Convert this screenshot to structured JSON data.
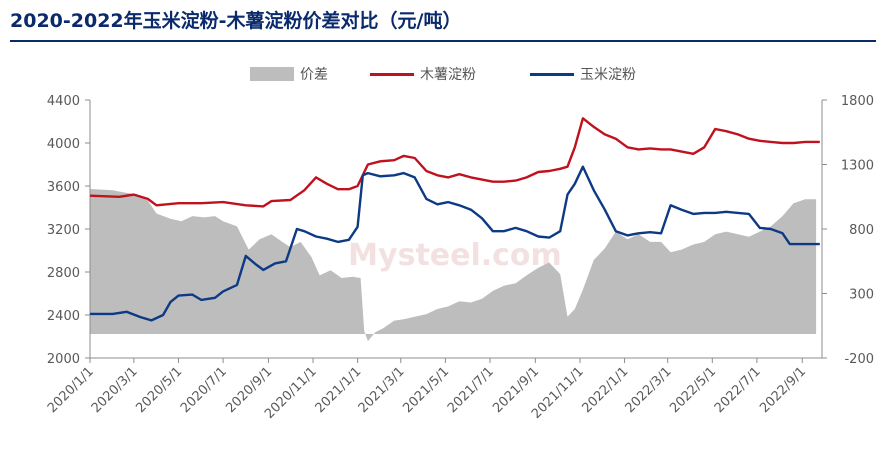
{
  "chart_data": {
    "type": "line",
    "title": "2020-2022年玉米淀粉-木薯淀粉价差对比（元/吨）",
    "watermark": "Mysteel.com",
    "legend_position": "top",
    "grid": false,
    "x_ticks": [
      "2020/1/1",
      "2020/3/1",
      "2020/5/1",
      "2020/7/1",
      "2020/9/1",
      "2020/11/1",
      "2021/1/1",
      "2021/3/1",
      "2021/5/1",
      "2021/7/1",
      "2021/9/1",
      "2021/11/1",
      "2022/1/1",
      "2022/3/1",
      "2022/5/1",
      "2022/7/1",
      "2022/9/1"
    ],
    "y_left": {
      "lim": [
        2000,
        4400
      ],
      "ticks": [
        "2000",
        "2400",
        "2800",
        "3200",
        "3600",
        "4000",
        "4400"
      ]
    },
    "y_right": {
      "lim": [
        -200,
        1800
      ],
      "ticks": [
        "-200",
        "300",
        "800",
        "1300",
        "1800"
      ]
    },
    "colors": {
      "price_spread": "#bdbdbd",
      "cassava": "#c0111f",
      "corn": "#0d3a85"
    },
    "series": [
      {
        "name": "价差",
        "axis": "right",
        "kind": "area",
        "points": [
          [
            "2020/1/1",
            1110
          ],
          [
            "2020/2/1",
            1100
          ],
          [
            "2020/2/20",
            1080
          ],
          [
            "2020/3/5",
            1070
          ],
          [
            "2020/3/20",
            1020
          ],
          [
            "2020/4/1",
            920
          ],
          [
            "2020/4/20",
            880
          ],
          [
            "2020/5/5",
            860
          ],
          [
            "2020/5/20",
            900
          ],
          [
            "2020/6/5",
            890
          ],
          [
            "2020/6/20",
            900
          ],
          [
            "2020/7/1",
            860
          ],
          [
            "2020/7/20",
            820
          ],
          [
            "2020/8/5",
            640
          ],
          [
            "2020/8/20",
            720
          ],
          [
            "2020/9/5",
            760
          ],
          [
            "2020/9/20",
            700
          ],
          [
            "2020/10/1",
            660
          ],
          [
            "2020/10/15",
            700
          ],
          [
            "2020/10/30",
            580
          ],
          [
            "2020/11/10",
            440
          ],
          [
            "2020/11/25",
            480
          ],
          [
            "2020/12/10",
            420
          ],
          [
            "2020/12/25",
            430
          ],
          [
            "2021/1/5",
            420
          ],
          [
            "2021/1/10",
            10
          ],
          [
            "2021/1/15",
            -70
          ],
          [
            "2021/1/25",
            0
          ],
          [
            "2021/2/5",
            30
          ],
          [
            "2021/2/20",
            90
          ],
          [
            "2021/3/5",
            100
          ],
          [
            "2021/3/20",
            120
          ],
          [
            "2021/4/5",
            140
          ],
          [
            "2021/4/20",
            180
          ],
          [
            "2021/5/5",
            200
          ],
          [
            "2021/5/20",
            240
          ],
          [
            "2021/6/5",
            230
          ],
          [
            "2021/6/20",
            260
          ],
          [
            "2021/7/5",
            320
          ],
          [
            "2021/7/20",
            360
          ],
          [
            "2021/8/5",
            380
          ],
          [
            "2021/8/20",
            440
          ],
          [
            "2021/9/5",
            500
          ],
          [
            "2021/9/20",
            540
          ],
          [
            "2021/10/5",
            450
          ],
          [
            "2021/10/15",
            120
          ],
          [
            "2021/10/25",
            180
          ],
          [
            "2021/11/5",
            330
          ],
          [
            "2021/11/20",
            560
          ],
          [
            "2021/12/5",
            650
          ],
          [
            "2021/12/20",
            780
          ],
          [
            "2022/1/5",
            720
          ],
          [
            "2022/1/20",
            760
          ],
          [
            "2022/2/5",
            700
          ],
          [
            "2022/2/20",
            700
          ],
          [
            "2022/3/5",
            620
          ],
          [
            "2022/3/20",
            640
          ],
          [
            "2022/4/5",
            680
          ],
          [
            "2022/4/20",
            700
          ],
          [
            "2022/5/5",
            760
          ],
          [
            "2022/5/20",
            780
          ],
          [
            "2022/6/5",
            760
          ],
          [
            "2022/6/20",
            740
          ],
          [
            "2022/7/5",
            780
          ],
          [
            "2022/7/20",
            820
          ],
          [
            "2022/8/5",
            900
          ],
          [
            "2022/8/20",
            1000
          ],
          [
            "2022/9/5",
            1030
          ],
          [
            "2022/9/20",
            1030
          ]
        ]
      },
      {
        "name": "木薯淀粉",
        "axis": "left",
        "kind": "line",
        "points": [
          [
            "2020/1/1",
            3510
          ],
          [
            "2020/2/10",
            3500
          ],
          [
            "2020/3/1",
            3520
          ],
          [
            "2020/3/20",
            3480
          ],
          [
            "2020/4/1",
            3420
          ],
          [
            "2020/5/1",
            3440
          ],
          [
            "2020/6/1",
            3440
          ],
          [
            "2020/7/1",
            3450
          ],
          [
            "2020/8/1",
            3420
          ],
          [
            "2020/8/25",
            3410
          ],
          [
            "2020/9/5",
            3460
          ],
          [
            "2020/10/1",
            3470
          ],
          [
            "2020/10/20",
            3560
          ],
          [
            "2020/11/5",
            3680
          ],
          [
            "2020/11/20",
            3620
          ],
          [
            "2020/12/5",
            3570
          ],
          [
            "2020/12/20",
            3570
          ],
          [
            "2021/1/1",
            3600
          ],
          [
            "2021/1/15",
            3800
          ],
          [
            "2021/2/1",
            3830
          ],
          [
            "2021/2/20",
            3840
          ],
          [
            "2021/3/5",
            3880
          ],
          [
            "2021/3/20",
            3860
          ],
          [
            "2021/4/5",
            3740
          ],
          [
            "2021/4/20",
            3700
          ],
          [
            "2021/5/5",
            3680
          ],
          [
            "2021/5/20",
            3710
          ],
          [
            "2021/6/5",
            3680
          ],
          [
            "2021/6/20",
            3660
          ],
          [
            "2021/7/5",
            3640
          ],
          [
            "2021/7/20",
            3640
          ],
          [
            "2021/8/5",
            3650
          ],
          [
            "2021/8/20",
            3680
          ],
          [
            "2021/9/5",
            3730
          ],
          [
            "2021/9/20",
            3740
          ],
          [
            "2021/10/5",
            3760
          ],
          [
            "2021/10/15",
            3780
          ],
          [
            "2021/10/25",
            3960
          ],
          [
            "2021/11/5",
            4230
          ],
          [
            "2021/11/20",
            4150
          ],
          [
            "2021/12/5",
            4080
          ],
          [
            "2021/12/20",
            4040
          ],
          [
            "2022/1/5",
            3960
          ],
          [
            "2022/1/20",
            3940
          ],
          [
            "2022/2/5",
            3950
          ],
          [
            "2022/2/20",
            3940
          ],
          [
            "2022/3/5",
            3940
          ],
          [
            "2022/3/20",
            3920
          ],
          [
            "2022/4/5",
            3900
          ],
          [
            "2022/4/20",
            3960
          ],
          [
            "2022/5/5",
            4130
          ],
          [
            "2022/5/20",
            4110
          ],
          [
            "2022/6/5",
            4080
          ],
          [
            "2022/6/20",
            4040
          ],
          [
            "2022/7/5",
            4020
          ],
          [
            "2022/7/20",
            4010
          ],
          [
            "2022/8/5",
            4000
          ],
          [
            "2022/8/20",
            4000
          ],
          [
            "2022/9/5",
            4010
          ],
          [
            "2022/9/25",
            4010
          ]
        ]
      },
      {
        "name": "玉米淀粉",
        "axis": "left",
        "kind": "line",
        "points": [
          [
            "2020/1/1",
            2410
          ],
          [
            "2020/2/1",
            2410
          ],
          [
            "2020/2/20",
            2430
          ],
          [
            "2020/3/10",
            2380
          ],
          [
            "2020/3/25",
            2350
          ],
          [
            "2020/4/10",
            2400
          ],
          [
            "2020/4/20",
            2520
          ],
          [
            "2020/5/1",
            2580
          ],
          [
            "2020/5/20",
            2590
          ],
          [
            "2020/6/1",
            2540
          ],
          [
            "2020/6/20",
            2560
          ],
          [
            "2020/7/1",
            2620
          ],
          [
            "2020/7/20",
            2680
          ],
          [
            "2020/8/1",
            2950
          ],
          [
            "2020/8/15",
            2870
          ],
          [
            "2020/8/25",
            2820
          ],
          [
            "2020/9/10",
            2880
          ],
          [
            "2020/9/25",
            2900
          ],
          [
            "2020/10/10",
            3200
          ],
          [
            "2020/10/20",
            3180
          ],
          [
            "2020/11/5",
            3130
          ],
          [
            "2020/11/20",
            3110
          ],
          [
            "2020/12/5",
            3080
          ],
          [
            "2020/12/20",
            3100
          ],
          [
            "2021/1/1",
            3220
          ],
          [
            "2021/1/8",
            3700
          ],
          [
            "2021/1/15",
            3720
          ],
          [
            "2021/2/1",
            3690
          ],
          [
            "2021/2/20",
            3700
          ],
          [
            "2021/3/5",
            3720
          ],
          [
            "2021/3/20",
            3680
          ],
          [
            "2021/4/5",
            3480
          ],
          [
            "2021/4/20",
            3430
          ],
          [
            "2021/5/5",
            3450
          ],
          [
            "2021/5/20",
            3420
          ],
          [
            "2021/6/5",
            3380
          ],
          [
            "2021/6/20",
            3300
          ],
          [
            "2021/7/5",
            3180
          ],
          [
            "2021/7/20",
            3180
          ],
          [
            "2021/8/5",
            3210
          ],
          [
            "2021/8/20",
            3180
          ],
          [
            "2021/9/5",
            3130
          ],
          [
            "2021/9/20",
            3120
          ],
          [
            "2021/10/5",
            3180
          ],
          [
            "2021/10/15",
            3520
          ],
          [
            "2021/10/25",
            3620
          ],
          [
            "2021/11/5",
            3780
          ],
          [
            "2021/11/20",
            3560
          ],
          [
            "2021/12/5",
            3380
          ],
          [
            "2021/12/20",
            3180
          ],
          [
            "2022/1/5",
            3140
          ],
          [
            "2022/1/20",
            3160
          ],
          [
            "2022/2/5",
            3170
          ],
          [
            "2022/2/20",
            3160
          ],
          [
            "2022/3/5",
            3420
          ],
          [
            "2022/3/20",
            3380
          ],
          [
            "2022/4/5",
            3340
          ],
          [
            "2022/4/20",
            3350
          ],
          [
            "2022/5/5",
            3350
          ],
          [
            "2022/5/20",
            3360
          ],
          [
            "2022/6/5",
            3350
          ],
          [
            "2022/6/20",
            3340
          ],
          [
            "2022/7/5",
            3210
          ],
          [
            "2022/7/20",
            3200
          ],
          [
            "2022/8/5",
            3160
          ],
          [
            "2022/8/15",
            3060
          ],
          [
            "2022/8/25",
            3060
          ],
          [
            "2022/9/5",
            3060
          ],
          [
            "2022/9/25",
            3060
          ]
        ]
      }
    ]
  }
}
